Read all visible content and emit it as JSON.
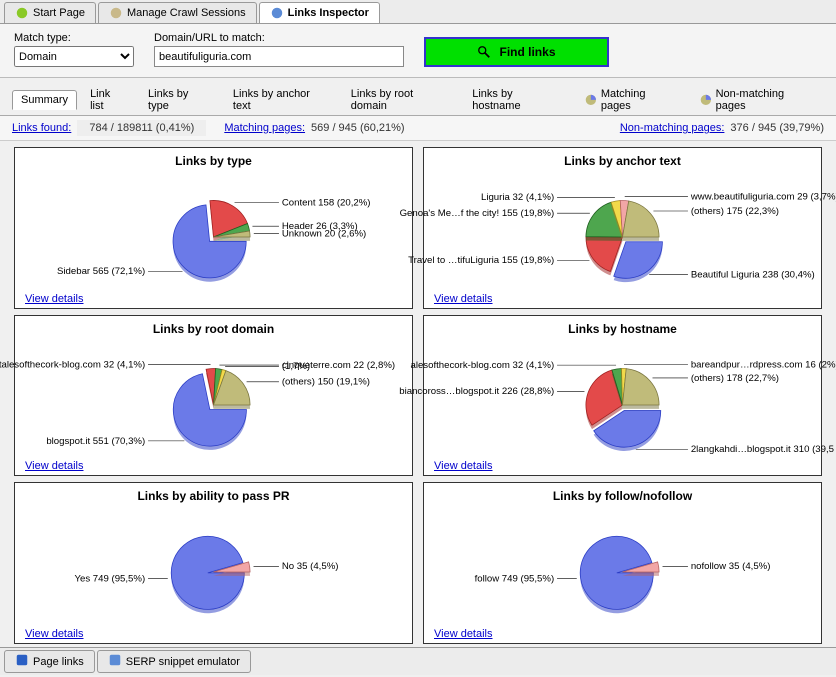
{
  "top_tabs": [
    {
      "label": "Start Page",
      "icon_color": "#8ac926"
    },
    {
      "label": "Manage Crawl Sessions",
      "icon_color": "#c9b98a"
    },
    {
      "label": "Links Inspector",
      "icon_color": "#5b8bd6",
      "active": true
    }
  ],
  "toolbar": {
    "match_type_label": "Match type:",
    "match_type_value": "Domain",
    "domain_label": "Domain/URL to match:",
    "domain_value": "beautifuliguria.com",
    "find_label": "Find links"
  },
  "sub_tabs": [
    {
      "label": "Summary",
      "active": true
    },
    {
      "label": "Link list"
    },
    {
      "label": "Links by type"
    },
    {
      "label": "Links by anchor text"
    },
    {
      "label": "Links by root domain"
    },
    {
      "label": "Links by hostname"
    },
    {
      "label": "Matching pages",
      "icon": true
    },
    {
      "label": "Non-matching pages",
      "icon": true
    }
  ],
  "stats": {
    "links_found_label": "Links found:",
    "links_found_value": "784 / 189811 (0,41%)",
    "matching_label": "Matching pages:",
    "matching_value": "569 / 945 (60,21%)",
    "nonmatching_label": "Non-matching pages:",
    "nonmatching_value": "376 / 945 (39,79%)"
  },
  "colors": {
    "blue": "#6b7ae8",
    "blue_stroke": "#2a3cc4",
    "red": "#e34a4a",
    "red_stroke": "#a02020",
    "green": "#4ea64e",
    "green_stroke": "#1f5f1f",
    "khaki": "#c0bb7a",
    "khaki_stroke": "#7a7640",
    "yellow": "#f2d94a",
    "yellow_stroke": "#a08a1f",
    "pink": "#f2a6a6",
    "pink_stroke": "#b46060"
  },
  "charts": [
    {
      "title": "Links by type",
      "view": "View details",
      "slices": [
        {
          "label": "Sidebar 565 (72,1%)",
          "value": 72.1,
          "color": "blue",
          "exploded": true
        },
        {
          "label": "Content 158 (20,2%)",
          "value": 20.2,
          "color": "red"
        },
        {
          "label": "Header 26 (3,3%)",
          "value": 3.3,
          "color": "green"
        },
        {
          "label": "Unknown 20 (2,6%)",
          "value": 2.6,
          "color": "khaki"
        }
      ]
    },
    {
      "title": "Links by anchor text",
      "view": "View details",
      "slices": [
        {
          "label": "Beautiful Liguria 238 (30,4%)",
          "value": 30.4,
          "color": "blue",
          "exploded": true
        },
        {
          "label": "Travel to …tifuLiguria 155 (19,8%)",
          "value": 19.8,
          "color": "red"
        },
        {
          "label": "Genoa's Me…f the city! 155 (19,8%)",
          "value": 19.8,
          "color": "green"
        },
        {
          "label": "Liguria 32 (4,1%)",
          "value": 4.1,
          "color": "yellow"
        },
        {
          "label": "www.beautifuliguria.com 29 (3,7%)",
          "value": 3.7,
          "color": "pink"
        },
        {
          "label": "(others) 175 (22,3%)",
          "value": 22.3,
          "color": "khaki"
        }
      ]
    },
    {
      "title": "Links by root domain",
      "view": "View details",
      "slices": [
        {
          "label": "blogspot.it 551 (70,3%)",
          "value": 70.3,
          "color": "blue",
          "exploded": true
        },
        {
          "label": "talesofthecork-blog.com 32 (4,1%)",
          "value": 4.1,
          "color": "red"
        },
        {
          "label": "cinqueterre.com 22 (2,8%)",
          "value": 2.8,
          "color": "green"
        },
        {
          "label": "(1,7%)",
          "value": 1.7,
          "color": "yellow"
        },
        {
          "label": "(others) 150 (19,1%)",
          "value": 19.1,
          "color": "khaki"
        }
      ]
    },
    {
      "title": "Links by hostname",
      "view": "View details",
      "slices": [
        {
          "label": "2langkahdi…blogspot.it 310 (39,5",
          "value": 39.5,
          "color": "blue",
          "exploded": true
        },
        {
          "label": "biancoross…blogspot.it 226 (28,8%)",
          "value": 28.8,
          "color": "red"
        },
        {
          "label": "alesofthecork-blog.com 32 (4,1%)",
          "value": 4.1,
          "color": "green"
        },
        {
          "label": "bareandpur…rdpress.com 16 (2%)",
          "value": 2.0,
          "color": "yellow"
        },
        {
          "label": "(others) 178 (22,7%)",
          "value": 22.7,
          "color": "khaki"
        }
      ]
    },
    {
      "title": "Links by ability to pass PR",
      "view": "View details",
      "slices": [
        {
          "label": "Yes 749 (95,5%)",
          "value": 95.5,
          "color": "blue",
          "exploded": true
        },
        {
          "label": "No 35 (4,5%)",
          "value": 4.5,
          "color": "pink"
        }
      ]
    },
    {
      "title": "Links by follow/nofollow",
      "view": "View details",
      "slices": [
        {
          "label": "follow 749 (95,5%)",
          "value": 95.5,
          "color": "blue",
          "exploded": true
        },
        {
          "label": "nofollow 35 (4,5%)",
          "value": 4.5,
          "color": "pink"
        }
      ]
    }
  ],
  "bottom_tabs": [
    {
      "label": "Page links",
      "icon_color": "#2a5fc4"
    },
    {
      "label": "SERP snippet emulator",
      "icon_color": "#5b8bd6"
    }
  ]
}
